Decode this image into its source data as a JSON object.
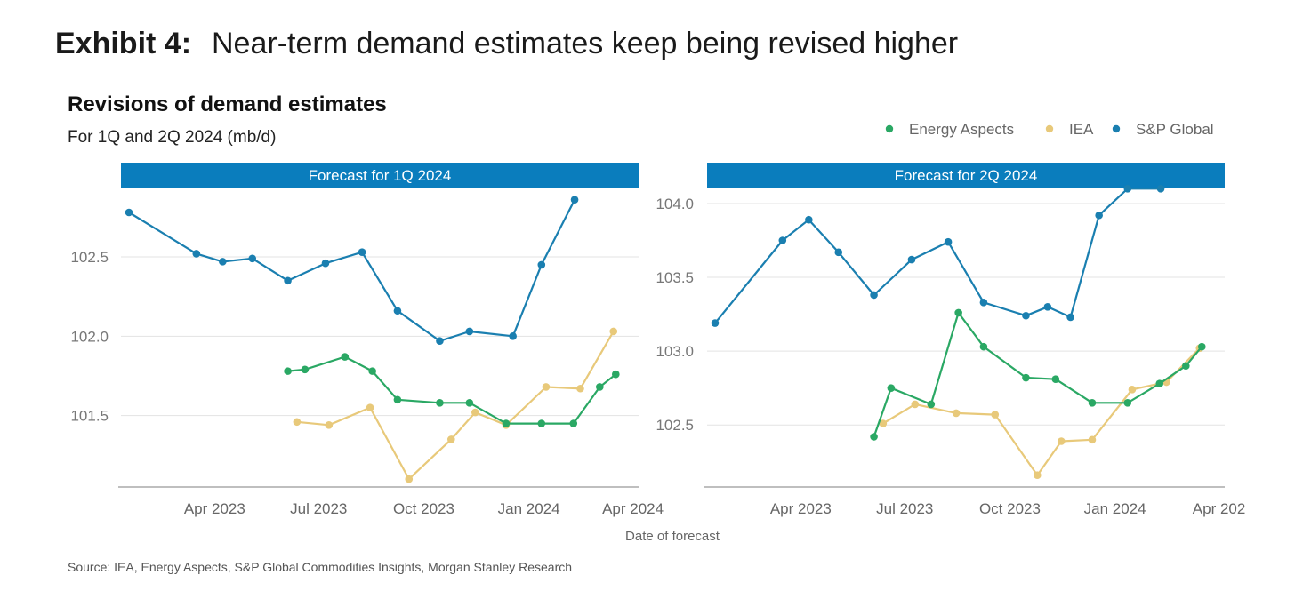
{
  "exhibit": {
    "label": "Exhibit 4:",
    "title": "Near-term demand estimates keep being revised higher"
  },
  "chart_title": "Revisions of demand estimates",
  "chart_subtitle": "For 1Q and 2Q 2024 (mb/d)",
  "source": "Source: IEA, Energy Aspects, S&P Global Commodities Insights, Morgan Stanley Research",
  "legend": [
    {
      "name": "Energy Aspects",
      "color": "#2aa864"
    },
    {
      "name": "IEA",
      "color": "#e8c97a"
    },
    {
      "name": "S&P Global",
      "color": "#1a7fb0"
    }
  ],
  "xlabel": "Date of forecast",
  "chart_data": [
    {
      "type": "line",
      "panel_title": "Forecast for 1Q 2024",
      "xlim": [
        "2023-01-09",
        "2024-04-06"
      ],
      "ylim": [
        101.05,
        102.92
      ],
      "x_ticks": [
        {
          "date": "2023-04-01",
          "label": "Apr 2023"
        },
        {
          "date": "2023-07-01",
          "label": "Jul 2023"
        },
        {
          "date": "2023-10-01",
          "label": "Oct 2023"
        },
        {
          "date": "2024-01-01",
          "label": "Jan 2024"
        },
        {
          "date": "2024-04-01",
          "label": "Apr 2024"
        }
      ],
      "y_ticks": [
        {
          "value": 101.5,
          "label": "101.5"
        },
        {
          "value": 102.0,
          "label": "102.0"
        },
        {
          "value": 102.5,
          "label": "102.5"
        }
      ],
      "series": [
        {
          "name": "S&P Global",
          "color": "#1a7fb0",
          "x": [
            "2023-01-16",
            "2023-03-16",
            "2023-04-08",
            "2023-05-04",
            "2023-06-04",
            "2023-07-07",
            "2023-08-08",
            "2023-09-08",
            "2023-10-15",
            "2023-11-10",
            "2023-12-18",
            "2024-01-12",
            "2024-02-10"
          ],
          "y": [
            102.78,
            102.52,
            102.47,
            102.49,
            102.35,
            102.46,
            102.53,
            102.16,
            101.97,
            102.03,
            102.0,
            102.45,
            102.86
          ]
        },
        {
          "name": "Energy Aspects",
          "color": "#2aa864",
          "x": [
            "2023-06-04",
            "2023-06-19",
            "2023-07-24",
            "2023-08-17",
            "2023-09-08",
            "2023-10-15",
            "2023-11-10",
            "2023-12-12",
            "2024-01-12",
            "2024-02-09",
            "2024-03-03",
            "2024-03-17"
          ],
          "y": [
            101.78,
            101.79,
            101.87,
            101.78,
            101.6,
            101.58,
            101.58,
            101.45,
            101.45,
            101.45,
            101.68,
            101.76
          ]
        },
        {
          "name": "IEA",
          "color": "#e8c97a",
          "x": [
            "2023-06-12",
            "2023-07-10",
            "2023-08-15",
            "2023-09-18",
            "2023-10-25",
            "2023-11-15",
            "2023-12-12",
            "2024-01-16",
            "2024-02-15",
            "2024-03-15"
          ],
          "y": [
            101.46,
            101.44,
            101.55,
            101.1,
            101.35,
            101.52,
            101.44,
            101.68,
            101.67,
            102.03
          ]
        }
      ]
    },
    {
      "type": "line",
      "panel_title": "Forecast for 2Q 2024",
      "xlim": [
        "2023-01-09",
        "2024-04-06"
      ],
      "ylim": [
        102.08,
        104.09
      ],
      "x_ticks": [
        {
          "date": "2023-04-01",
          "label": "Apr 2023"
        },
        {
          "date": "2023-07-01",
          "label": "Jul 2023"
        },
        {
          "date": "2023-10-01",
          "label": "Oct 2023"
        },
        {
          "date": "2024-01-01",
          "label": "Jan 2024"
        },
        {
          "date": "2024-04-01",
          "label": "Apr 202"
        }
      ],
      "y_ticks": [
        {
          "value": 102.5,
          "label": "102.5"
        },
        {
          "value": 103.0,
          "label": "103.0"
        },
        {
          "value": 103.5,
          "label": "103.5"
        },
        {
          "value": 104.0,
          "label": "104.0"
        }
      ],
      "series": [
        {
          "name": "S&P Global",
          "color": "#1a7fb0",
          "x": [
            "2023-01-16",
            "2023-03-16",
            "2023-04-08",
            "2023-05-04",
            "2023-06-04",
            "2023-07-07",
            "2023-08-08",
            "2023-09-08",
            "2023-10-15",
            "2023-11-03",
            "2023-11-23",
            "2023-12-18",
            "2024-01-12",
            "2024-02-10"
          ],
          "y": [
            103.19,
            103.75,
            103.89,
            103.67,
            103.38,
            103.62,
            103.74,
            103.33,
            103.24,
            103.3,
            103.23,
            103.92,
            104.1,
            104.1
          ]
        },
        {
          "name": "Energy Aspects",
          "color": "#2aa864",
          "x": [
            "2023-06-04",
            "2023-06-19",
            "2023-07-24",
            "2023-08-17",
            "2023-09-08",
            "2023-10-15",
            "2023-11-10",
            "2023-12-12",
            "2024-01-12",
            "2024-02-09",
            "2024-03-03",
            "2024-03-17"
          ],
          "y": [
            102.42,
            102.75,
            102.64,
            103.26,
            103.03,
            102.82,
            102.81,
            102.65,
            102.65,
            102.78,
            102.9,
            103.03
          ]
        },
        {
          "name": "IEA",
          "color": "#e8c97a",
          "x": [
            "2023-06-12",
            "2023-07-10",
            "2023-08-15",
            "2023-09-18",
            "2023-10-25",
            "2023-11-15",
            "2023-12-12",
            "2024-01-16",
            "2024-02-15",
            "2024-03-15"
          ],
          "y": [
            102.51,
            102.64,
            102.58,
            102.57,
            102.16,
            102.39,
            102.4,
            102.74,
            102.79,
            103.02
          ]
        }
      ]
    }
  ]
}
